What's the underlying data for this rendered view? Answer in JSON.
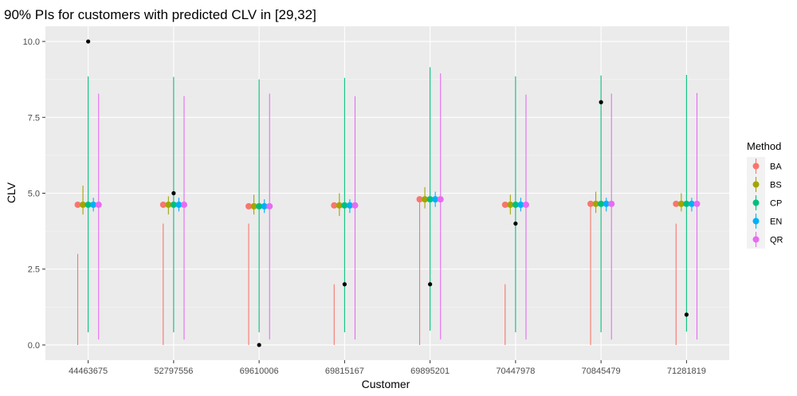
{
  "chart_data": {
    "type": "errorbar",
    "title": "90% PIs for customers with predicted CLV in [29,32]",
    "xlabel": "Customer",
    "ylabel": "CLV",
    "ylim": [
      -0.5,
      10.5
    ],
    "yticks": [
      0.0,
      2.5,
      5.0,
      7.5,
      10.0
    ],
    "ytick_labels": [
      "0.0",
      "2.5",
      "5.0",
      "7.5",
      "10.0"
    ],
    "categories": [
      "44463675",
      "52797556",
      "69610006",
      "69815167",
      "69895201",
      "70447978",
      "70845479",
      "71281819"
    ],
    "legend": {
      "title": "Method",
      "position": "right"
    },
    "series": [
      {
        "name": "BA",
        "color": "#F8766D",
        "point": [
          4.62,
          4.62,
          4.57,
          4.6,
          4.8,
          4.62,
          4.65,
          4.65
        ],
        "lower": [
          0.0,
          0.0,
          0.0,
          0.0,
          0.0,
          0.0,
          0.0,
          0.0
        ],
        "upper": [
          3.0,
          4.0,
          4.0,
          2.0,
          4.8,
          2.0,
          4.7,
          4.0
        ]
      },
      {
        "name": "BS",
        "color": "#A3A500",
        "point": [
          4.62,
          4.62,
          4.57,
          4.6,
          4.8,
          4.62,
          4.65,
          4.65
        ],
        "lower": [
          4.3,
          4.3,
          4.3,
          4.25,
          4.5,
          4.3,
          4.35,
          4.4
        ],
        "upper": [
          5.25,
          4.9,
          4.95,
          5.0,
          5.2,
          4.95,
          5.05,
          5.0
        ]
      },
      {
        "name": "CP",
        "color": "#00BF7D",
        "point": [
          4.62,
          4.62,
          4.57,
          4.6,
          4.8,
          4.62,
          4.65,
          4.65
        ],
        "lower": [
          0.42,
          0.42,
          0.42,
          0.42,
          0.47,
          0.42,
          0.42,
          0.44
        ],
        "upper": [
          8.85,
          8.83,
          8.75,
          8.8,
          9.15,
          8.85,
          8.88,
          8.9
        ]
      },
      {
        "name": "EN",
        "color": "#00B0F6",
        "point": [
          4.62,
          4.62,
          4.57,
          4.6,
          4.8,
          4.62,
          4.65,
          4.65
        ],
        "lower": [
          4.4,
          4.4,
          4.35,
          4.35,
          4.55,
          4.4,
          4.4,
          4.4
        ],
        "upper": [
          4.85,
          4.85,
          4.8,
          4.8,
          5.05,
          4.85,
          4.85,
          4.85
        ]
      },
      {
        "name": "QR",
        "color": "#E76BF3",
        "point": [
          4.62,
          4.62,
          4.57,
          4.6,
          4.8,
          4.62,
          4.65,
          4.65
        ],
        "lower": [
          0.18,
          0.18,
          0.18,
          0.18,
          0.18,
          0.18,
          0.18,
          0.18
        ],
        "upper": [
          8.28,
          8.2,
          8.28,
          8.2,
          8.95,
          8.25,
          8.28,
          8.3
        ]
      }
    ],
    "actual": {
      "color": "#000000",
      "values": [
        10.0,
        5.0,
        0.0,
        2.0,
        2.0,
        4.0,
        8.0,
        1.0
      ]
    }
  }
}
